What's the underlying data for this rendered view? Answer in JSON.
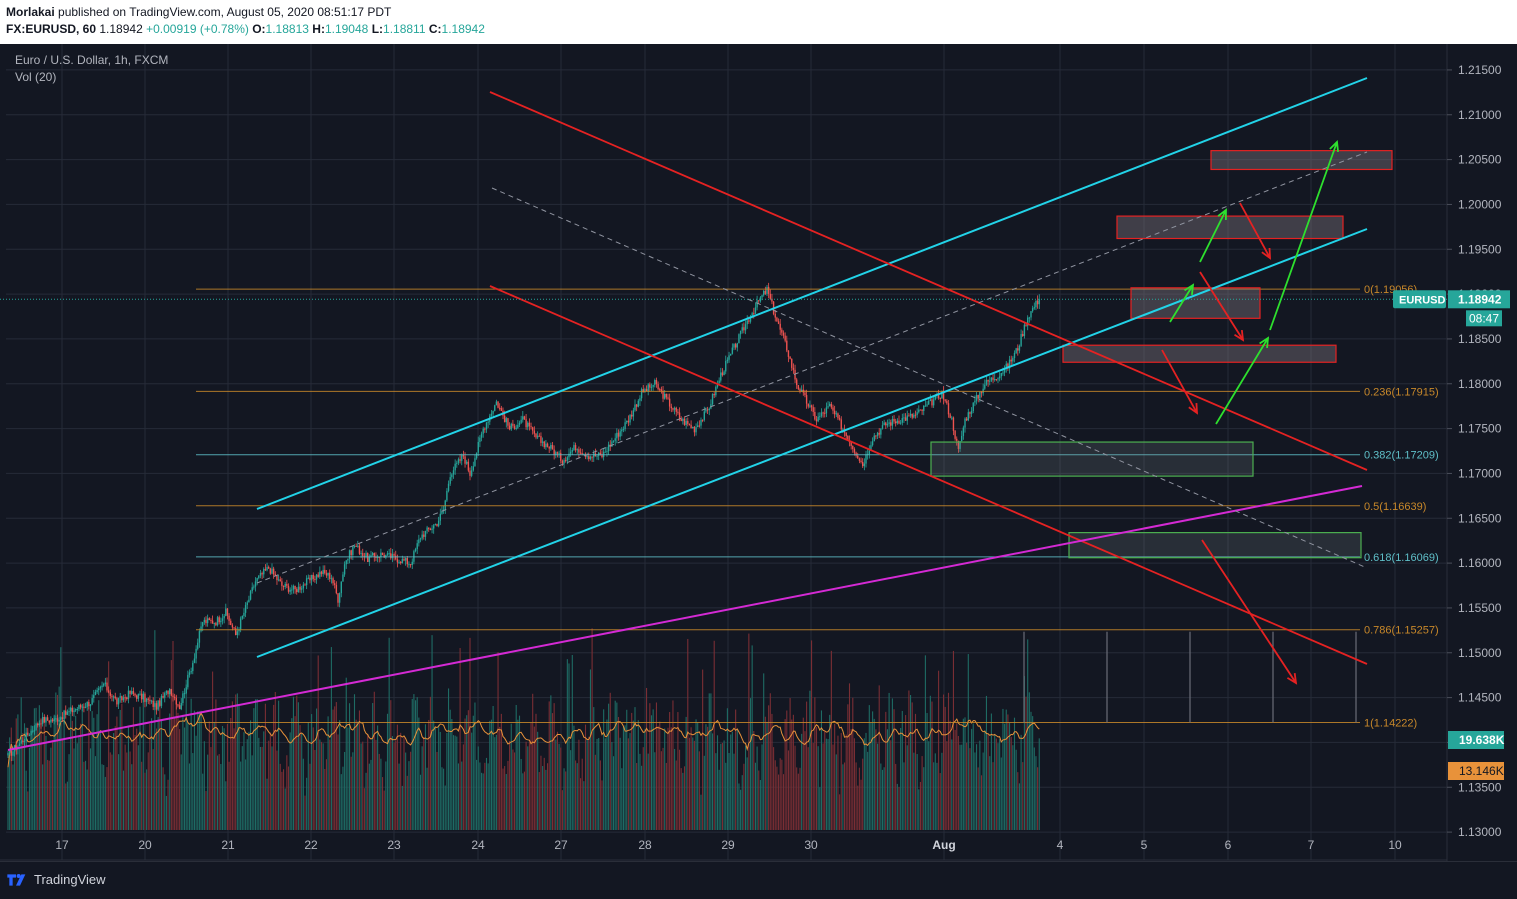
{
  "header": {
    "publisher": "Morlakai",
    "published_text": "published on TradingView.com, August 05, 2020 08:51:17 PDT",
    "symbol": "FX:EURUSD, 60",
    "last": "1.18942",
    "change": "+0.00919 (+0.78%)",
    "o_label": "O:",
    "o": "1.18813",
    "h_label": "H:",
    "h": "1.19048",
    "l_label": "L:",
    "l": "1.18811",
    "c_label": "C:",
    "c": "1.18942"
  },
  "legend": {
    "title": "Euro / U.S. Dollar, 1h, FXCM",
    "volume": "Vol (20)"
  },
  "footer": {
    "brand": "TradingView"
  },
  "colors": {
    "background": "#131722",
    "up": "#26a69a",
    "down": "#ef5350",
    "channel": "#22d3e8",
    "red_line": "#e52222",
    "magenta": "#d42ad4",
    "fib": "#c8882a",
    "fib_blue": "#5fbfc8"
  },
  "chart_data": {
    "type": "candlestick",
    "symbol": "EURUSD",
    "timeframe": "1h",
    "y_ticks": [
      "1.21500",
      "1.21000",
      "1.20500",
      "1.20000",
      "1.19500",
      "1.19000",
      "1.18500",
      "1.18000",
      "1.17500",
      "1.17000",
      "1.16500",
      "1.16000",
      "1.15500",
      "1.15000",
      "1.14500",
      "1.14000",
      "1.13500",
      "1.13000"
    ],
    "ylim": [
      1.127,
      1.217
    ],
    "x_ticks": [
      "17",
      "20",
      "21",
      "22",
      "23",
      "24",
      "27",
      "28",
      "29",
      "30",
      "Aug",
      "4",
      "5",
      "6",
      "7",
      "10"
    ],
    "price_tag": "EURUSD",
    "price_value": "1.18942",
    "countdown": "08:47",
    "volume_last": "19.638K",
    "volume_ma": "13.146K",
    "volume_max": 45000,
    "fib_levels": [
      {
        "label": "0(1.19056)",
        "value": 1.19056,
        "color": "#c8882a"
      },
      {
        "label": "0.236(1.17915)",
        "value": 1.17915,
        "color": "#c8882a"
      },
      {
        "label": "0.382(1.17209)",
        "value": 1.17209,
        "color": "#5fbfc8"
      },
      {
        "label": "0.5(1.16639)",
        "value": 1.16639,
        "color": "#c8882a"
      },
      {
        "label": "0.618(1.16069)",
        "value": 1.16069,
        "color": "#5fbfc8"
      },
      {
        "label": "0.786(1.15257)",
        "value": 1.15257,
        "color": "#c8882a"
      },
      {
        "label": "1(1.14222)",
        "value": 1.14222,
        "color": "#c8882a"
      }
    ],
    "anchors": [
      [
        0,
        1.1385
      ],
      [
        10,
        1.1405
      ],
      [
        20,
        1.1425
      ],
      [
        28,
        1.1425
      ],
      [
        38,
        1.1435
      ],
      [
        50,
        1.1445
      ],
      [
        58,
        1.1465
      ],
      [
        66,
        1.1445
      ],
      [
        74,
        1.1455
      ],
      [
        82,
        1.145
      ],
      [
        90,
        1.144
      ],
      [
        98,
        1.146
      ],
      [
        104,
        1.144
      ],
      [
        112,
        1.149
      ],
      [
        118,
        1.1535
      ],
      [
        126,
        1.1535
      ],
      [
        132,
        1.1545
      ],
      [
        138,
        1.152
      ],
      [
        142,
        1.154
      ],
      [
        150,
        1.158
      ],
      [
        158,
        1.1595
      ],
      [
        166,
        1.1575
      ],
      [
        174,
        1.157
      ],
      [
        182,
        1.158
      ],
      [
        190,
        1.159
      ],
      [
        196,
        1.1585
      ],
      [
        200,
        1.156
      ],
      [
        204,
        1.16
      ],
      [
        210,
        1.162
      ],
      [
        218,
        1.1605
      ],
      [
        226,
        1.161
      ],
      [
        236,
        1.1605
      ],
      [
        244,
        1.16
      ],
      [
        250,
        1.163
      ],
      [
        260,
        1.1645
      ],
      [
        264,
        1.166
      ],
      [
        268,
        1.17
      ],
      [
        276,
        1.172
      ],
      [
        280,
        1.17
      ],
      [
        288,
        1.175
      ],
      [
        296,
        1.178
      ],
      [
        304,
        1.175
      ],
      [
        312,
        1.176
      ],
      [
        320,
        1.174
      ],
      [
        328,
        1.173
      ],
      [
        336,
        1.1715
      ],
      [
        344,
        1.173
      ],
      [
        352,
        1.172
      ],
      [
        360,
        1.172
      ],
      [
        368,
        1.174
      ],
      [
        376,
        1.176
      ],
      [
        384,
        1.179
      ],
      [
        392,
        1.18
      ],
      [
        400,
        1.178
      ],
      [
        408,
        1.176
      ],
      [
        416,
        1.175
      ],
      [
        424,
        1.177
      ],
      [
        432,
        1.181
      ],
      [
        440,
        1.184
      ],
      [
        448,
        1.187
      ],
      [
        456,
        1.1895
      ],
      [
        460,
        1.1905
      ],
      [
        466,
        1.187
      ],
      [
        472,
        1.184
      ],
      [
        478,
        1.18
      ],
      [
        484,
        1.178
      ],
      [
        490,
        1.176
      ],
      [
        498,
        1.1775
      ],
      [
        506,
        1.175
      ],
      [
        512,
        1.173
      ],
      [
        518,
        1.171
      ],
      [
        524,
        1.174
      ],
      [
        532,
        1.1755
      ],
      [
        540,
        1.176
      ],
      [
        550,
        1.1765
      ],
      [
        560,
        1.178
      ],
      [
        566,
        1.179
      ],
      [
        572,
        1.176
      ],
      [
        576,
        1.1725
      ],
      [
        580,
        1.176
      ],
      [
        586,
        1.178
      ],
      [
        592,
        1.18
      ],
      [
        600,
        1.181
      ],
      [
        606,
        1.182
      ],
      [
        612,
        1.184
      ],
      [
        618,
        1.1875
      ],
      [
        625,
        1.1895
      ]
    ],
    "trendlines": [
      {
        "name": "upper-channel",
        "color": "#22d3e8",
        "from": [
          "Jul 21 06h",
          1.164
        ],
        "to": [
          "Aug 10 11h",
          1.2115
        ]
      },
      {
        "name": "lower-channel",
        "color": "#22d3e8",
        "from": [
          "Jul 21 10h",
          1.1475
        ],
        "to": [
          "Aug 10 09h",
          1.195
        ]
      },
      {
        "name": "red-upper",
        "color": "#e52222",
        "from": [
          "Jul 23 20h",
          1.2105
        ],
        "to": [
          "Aug 10 09h",
          1.1685
        ]
      },
      {
        "name": "red-lower",
        "color": "#e52222",
        "from": [
          "Jul 23 20h",
          1.17
        ],
        "to": [
          "Aug 10 09h",
          1.1465
        ]
      },
      {
        "name": "magenta-support",
        "color": "#d42ad4",
        "from": [
          "Jul 15",
          1.1375
        ],
        "to": [
          "Aug 10 08h",
          1.1665
        ]
      }
    ],
    "zones": [
      {
        "name": "target-zone-top",
        "style": "red",
        "y": [
          1.2039,
          1.206
        ]
      },
      {
        "name": "target-zone-2",
        "style": "red",
        "y": [
          1.1962,
          1.1987
        ]
      },
      {
        "name": "target-zone-3",
        "style": "red",
        "y": [
          1.1873,
          1.1907
        ]
      },
      {
        "name": "target-zone-4",
        "style": "red",
        "y": [
          1.1824,
          1.1843
        ]
      },
      {
        "name": "support-zone-1",
        "style": "green",
        "y": [
          1.1697,
          1.1735
        ]
      },
      {
        "name": "support-zone-2",
        "style": "green",
        "y": [
          1.1606,
          1.1634
        ]
      }
    ]
  }
}
